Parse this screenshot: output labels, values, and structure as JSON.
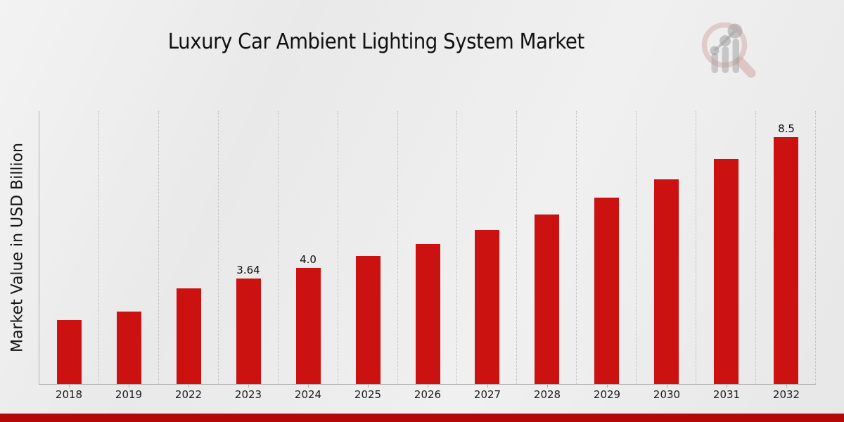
{
  "chart": {
    "title": "Luxury Car Ambient Lighting System Market",
    "ylabel": "Market Value in USD Billion"
  },
  "chart_data": {
    "type": "bar",
    "title": "Luxury Car Ambient Lighting System Market",
    "xlabel": "",
    "ylabel": "Market Value in USD Billion",
    "categories": [
      "2018",
      "2019",
      "2022",
      "2023",
      "2024",
      "2025",
      "2026",
      "2027",
      "2028",
      "2029",
      "2030",
      "2031",
      "2032"
    ],
    "values": [
      2.2,
      2.5,
      3.3,
      3.64,
      4.0,
      4.4,
      4.83,
      5.31,
      5.84,
      6.42,
      7.06,
      7.76,
      8.5
    ],
    "bar_labels": {
      "2023": "3.64",
      "2024": "4.0",
      "2032": "8.5"
    },
    "bar_color": "#cc1111",
    "ylim": [
      0,
      9.4
    ],
    "grid": "vertical dotted lines at category boundaries",
    "legend": "none"
  },
  "footer": {
    "accent_color": "#b40808"
  },
  "logo": {
    "name": "magnifier-bar-chart-logo",
    "ring_color": "#cf9f9f",
    "bars_color": "#9f9f9f"
  }
}
